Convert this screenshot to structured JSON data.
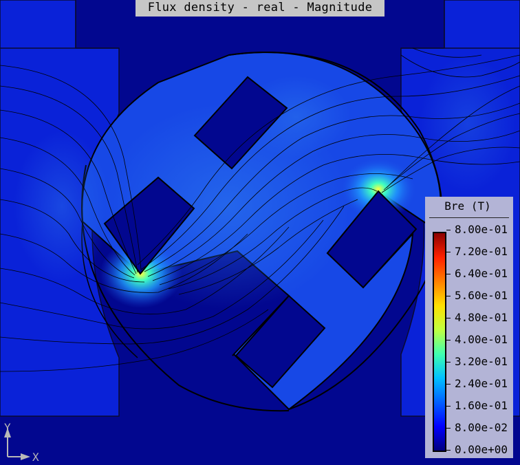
{
  "title": "Flux density - real - Magnitude",
  "legend": {
    "title": "Bre (T)",
    "ticks": [
      "8.00e-01",
      "7.20e-01",
      "6.40e-01",
      "5.60e-01",
      "4.80e-01",
      "4.00e-01",
      "3.20e-01",
      "2.40e-01",
      "1.60e-01",
      "8.00e-02",
      "0.00e+00"
    ],
    "colormap": [
      "#00007f",
      "#0000ff",
      "#0060ff",
      "#00c0ff",
      "#40ffb0",
      "#c0ff40",
      "#ffe000",
      "#ff8000",
      "#ff2000",
      "#8b0000"
    ]
  },
  "axes": {
    "y": "Y",
    "x": "X"
  },
  "colors": {
    "background": "#02078f",
    "field_low": "#0317d8",
    "field_mid": "#1a4fe8",
    "field_high": "#3c8cf0"
  }
}
